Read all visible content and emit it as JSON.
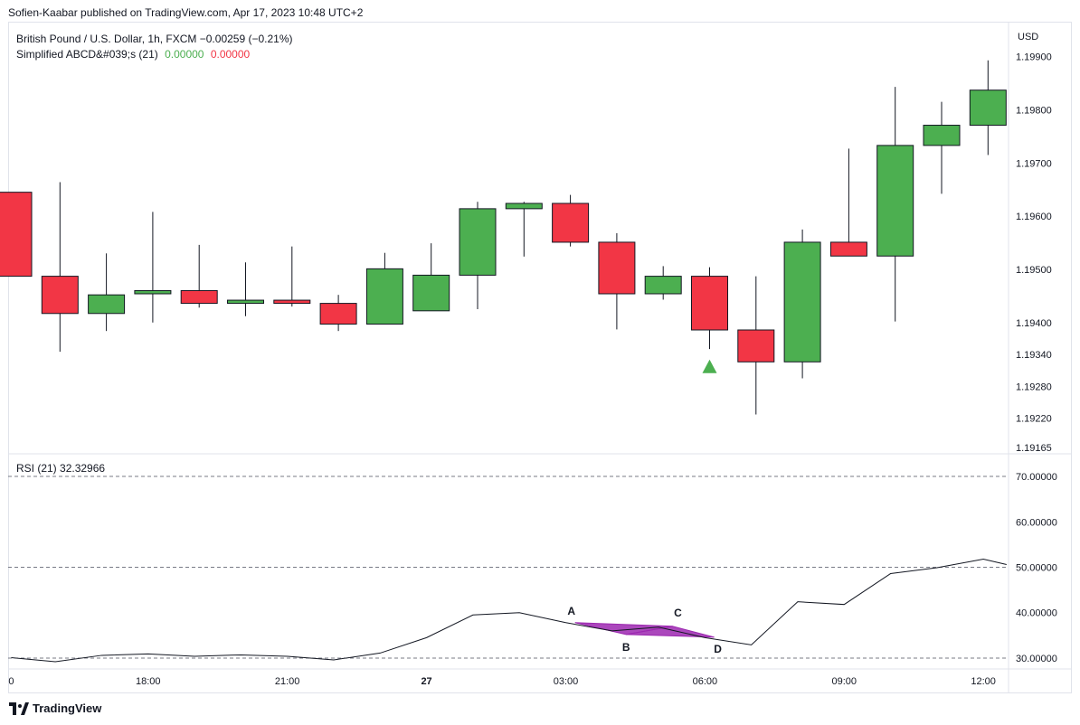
{
  "header": {
    "publish_text": "Sofien-Kaabar published on TradingView.com, Apr 17, 2023 10:48 UTC+2"
  },
  "price_pane": {
    "symbol_text": "British Pound / U.S. Dollar, 1h, FXCM",
    "change_text": "−0.00259 (−0.21%)",
    "indicator_label": "Simplified ABCD&#039;s (21)",
    "indicator_value_1": "0.00000",
    "indicator_value_2": "0.00000",
    "currency": "USD"
  },
  "rsi_pane": {
    "legend_label": "RSI (21)",
    "legend_value": "32.32966"
  },
  "colors": {
    "bull": "#4caf50",
    "bear": "#f23645",
    "rsi_line": "#131722",
    "pattern_fill": "#9c27b0",
    "signal": "#4caf50"
  },
  "footer": {
    "logo_text": "TradingView"
  },
  "chart_data": [
    {
      "type": "candlestick",
      "title": "British Pound / U.S. Dollar, 1h, FXCM",
      "ylim": [
        1.19165,
        1.1993
      ],
      "y_ticks": [
        "1.19900",
        "1.19800",
        "1.19700",
        "1.19600",
        "1.19500",
        "1.19400",
        "1.19340",
        "1.19280",
        "1.19220",
        "1.19165"
      ],
      "y_tick_values": [
        1.199,
        1.198,
        1.197,
        1.196,
        1.195,
        1.194,
        1.1934,
        1.1928,
        1.1922,
        1.19165
      ],
      "x_ticks": [
        "0",
        "18:00",
        "21:00",
        "27",
        "03:00",
        "06:00",
        "09:00",
        "12:00"
      ],
      "x_tick_index": [
        -0.05,
        2.9,
        5.9,
        8.9,
        11.9,
        14.9,
        17.9,
        20.9
      ],
      "candles": [
        {
          "o": 1.19645,
          "h": 1.19645,
          "l": 1.19487,
          "c": 1.19487
        },
        {
          "o": 1.19487,
          "h": 1.19664,
          "l": 1.19345,
          "c": 1.19417
        },
        {
          "o": 1.19417,
          "h": 1.1953,
          "l": 1.19384,
          "c": 1.19452
        },
        {
          "o": 1.19454,
          "h": 1.19608,
          "l": 1.194,
          "c": 1.1946
        },
        {
          "o": 1.1946,
          "h": 1.19546,
          "l": 1.19428,
          "c": 1.19436
        },
        {
          "o": 1.19436,
          "h": 1.19513,
          "l": 1.19412,
          "c": 1.19442
        },
        {
          "o": 1.19442,
          "h": 1.19543,
          "l": 1.1943,
          "c": 1.19436
        },
        {
          "o": 1.19436,
          "h": 1.19452,
          "l": 1.19384,
          "c": 1.19397
        },
        {
          "o": 1.19397,
          "h": 1.19531,
          "l": 1.19402,
          "c": 1.19501
        },
        {
          "o": 1.19422,
          "h": 1.19549,
          "l": 1.19422,
          "c": 1.19489
        },
        {
          "o": 1.19489,
          "h": 1.19627,
          "l": 1.19425,
          "c": 1.19614
        },
        {
          "o": 1.19614,
          "h": 1.19627,
          "l": 1.19524,
          "c": 1.19624
        },
        {
          "o": 1.19624,
          "h": 1.1964,
          "l": 1.19543,
          "c": 1.19551
        },
        {
          "o": 1.19551,
          "h": 1.19568,
          "l": 1.19387,
          "c": 1.19454
        },
        {
          "o": 1.19454,
          "h": 1.19506,
          "l": 1.19443,
          "c": 1.19487
        },
        {
          "o": 1.19487,
          "h": 1.19504,
          "l": 1.1935,
          "c": 1.19386
        },
        {
          "o": 1.19386,
          "h": 1.19487,
          "l": 1.19227,
          "c": 1.19326
        },
        {
          "o": 1.19326,
          "h": 1.19575,
          "l": 1.19295,
          "c": 1.19551
        },
        {
          "o": 1.19551,
          "h": 1.19727,
          "l": 1.19525,
          "c": 1.19525
        },
        {
          "o": 1.19525,
          "h": 1.19843,
          "l": 1.19402,
          "c": 1.19733
        },
        {
          "o": 1.19733,
          "h": 1.19815,
          "l": 1.19642,
          "c": 1.19771
        },
        {
          "o": 1.19771,
          "h": 1.19893,
          "l": 1.19715,
          "c": 1.19837
        }
      ],
      "signals": [
        {
          "index": 15,
          "price": 1.19315,
          "shape": "triangle-up"
        }
      ]
    },
    {
      "type": "line",
      "title": "RSI (21)",
      "ylim": [
        28.0,
        72.0
      ],
      "y_ticks": [
        "70.00000",
        "60.00000",
        "50.00000",
        "40.00000",
        "30.00000"
      ],
      "y_tick_values": [
        70,
        60,
        50,
        40,
        30
      ],
      "levels": [
        70,
        50,
        30
      ],
      "x": [
        -0.05,
        0.9,
        1.9,
        2.9,
        3.9,
        4.9,
        5.9,
        6.9,
        7.9,
        8.9,
        9.9,
        10.9,
        11.9,
        12.9,
        13.9,
        14.9,
        15.9,
        16.9,
        17.9,
        18.9,
        19.9,
        20.9,
        21.4
      ],
      "values": [
        30.1,
        29.2,
        30.6,
        30.9,
        30.4,
        30.7,
        30.4,
        29.6,
        31.1,
        34.5,
        39.5,
        40.0,
        37.8,
        36.0,
        36.8,
        34.5,
        32.9,
        42.4,
        41.8,
        48.6,
        49.9,
        51.8,
        50.6
      ],
      "pattern": {
        "labels": [
          "A",
          "B",
          "C",
          "D"
        ],
        "points": [
          [
            12.1,
            37.8
          ],
          [
            13.2,
            35.2
          ],
          [
            14.2,
            37.0
          ],
          [
            15.1,
            34.6
          ]
        ]
      }
    }
  ]
}
